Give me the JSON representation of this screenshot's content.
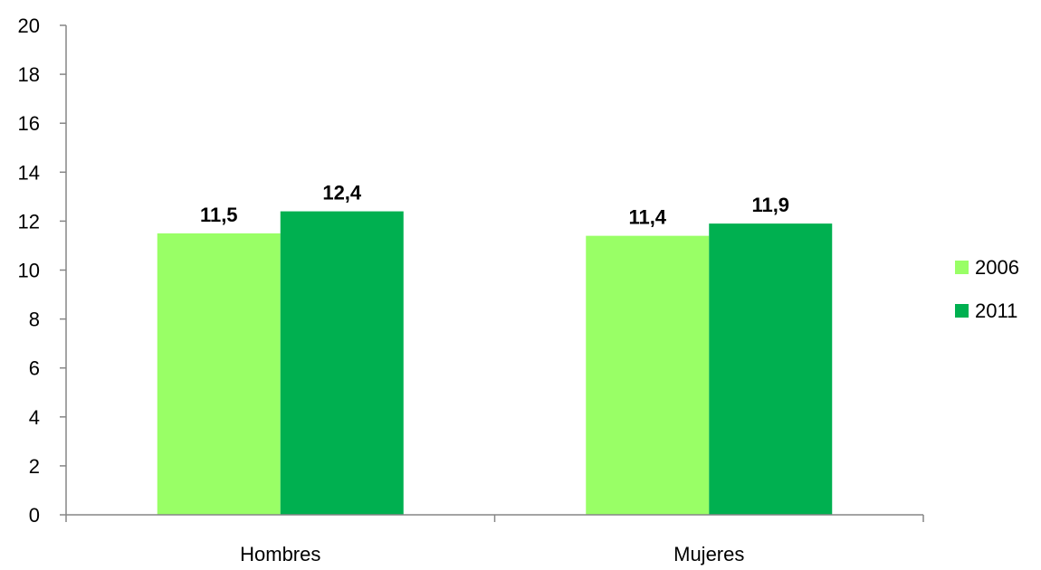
{
  "chart_data": {
    "type": "bar",
    "categories": [
      "Hombres",
      "Mujeres"
    ],
    "series": [
      {
        "name": "2006",
        "values": [
          11.5,
          11.4
        ],
        "labels": [
          "11,5",
          "11,4"
        ],
        "color": "#99ff66"
      },
      {
        "name": "2011",
        "values": [
          12.4,
          11.9
        ],
        "labels": [
          "12,4",
          "11,9"
        ],
        "color": "#00b050"
      }
    ],
    "ylim": [
      0,
      20
    ],
    "yticks": [
      0,
      2,
      4,
      6,
      8,
      10,
      12,
      14,
      16,
      18,
      20
    ],
    "title": "",
    "xlabel": "",
    "ylabel": "",
    "grid": false,
    "legend_position": "right"
  }
}
